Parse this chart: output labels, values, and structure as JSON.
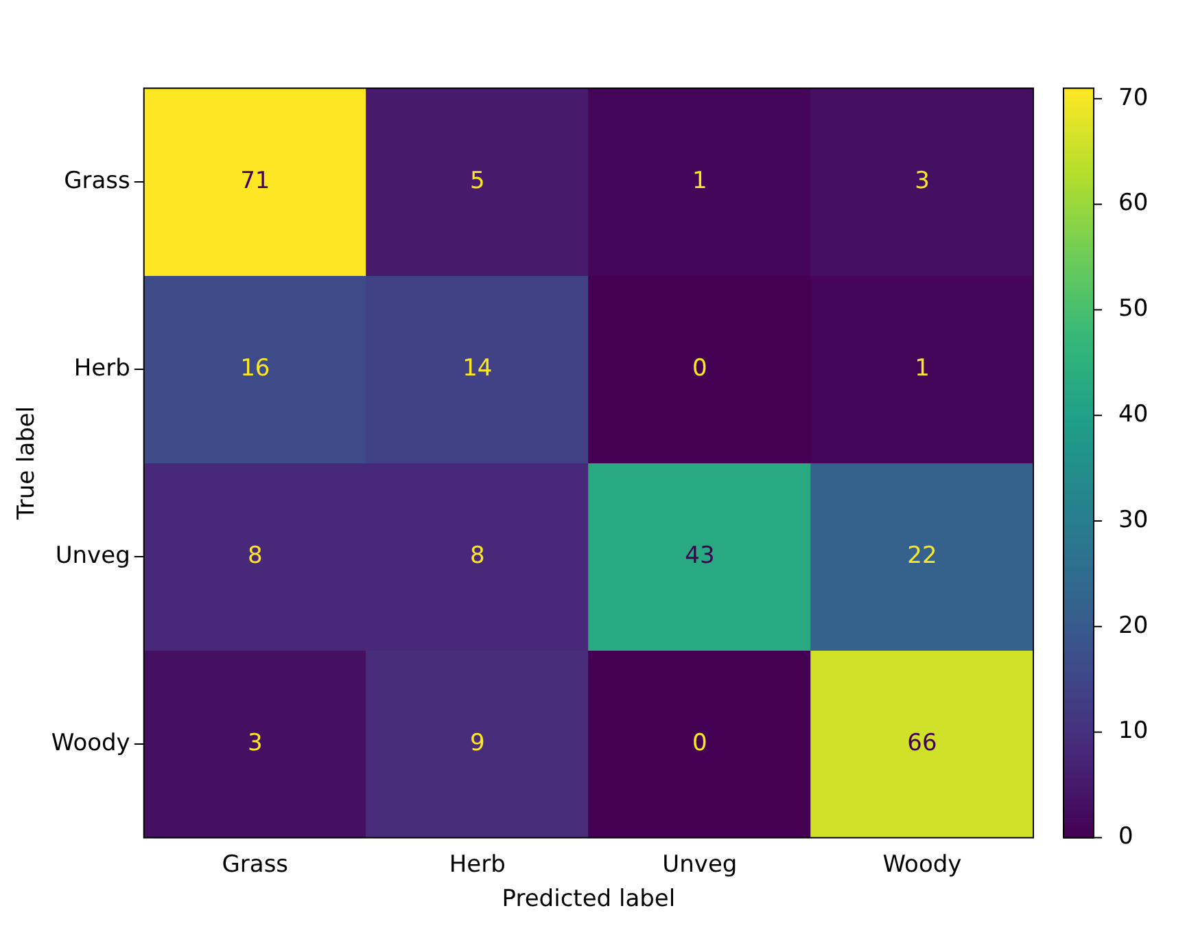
{
  "chart_data": {
    "type": "heatmap",
    "xlabel": "Predicted label",
    "ylabel": "True label",
    "categories": [
      "Grass",
      "Herb",
      "Unveg",
      "Woody"
    ],
    "y_categories": [
      "Grass",
      "Herb",
      "Unveg",
      "Woody"
    ],
    "cells": [
      [
        71,
        5,
        1,
        3
      ],
      [
        16,
        14,
        0,
        1
      ],
      [
        8,
        8,
        43,
        22
      ],
      [
        3,
        9,
        0,
        66
      ]
    ],
    "clim": [
      0,
      71
    ],
    "cticks": [
      0,
      10,
      20,
      30,
      40,
      50,
      60,
      70
    ],
    "data_labels": true,
    "grid": false
  }
}
